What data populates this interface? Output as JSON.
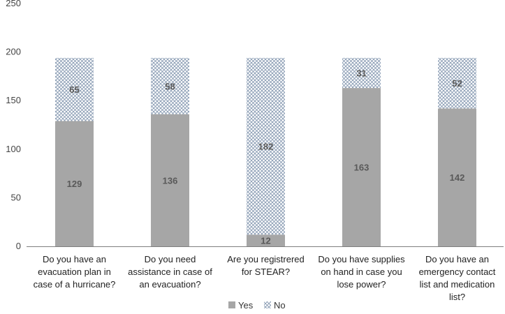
{
  "chart_data": {
    "type": "bar",
    "stacked": true,
    "categories": [
      [
        "Do you have an",
        "evacuation plan in",
        "case of a hurricane?"
      ],
      [
        "Do you need",
        "assistance in case of",
        "an evacuation?"
      ],
      [
        "Are you registrered",
        "for STEAR?"
      ],
      [
        "Do you have supplies",
        "on hand in case you",
        "lose power?"
      ],
      [
        "Do you have an",
        "emergency contact",
        "list and medication",
        "list?"
      ]
    ],
    "series": [
      {
        "name": "Yes",
        "values": [
          129,
          136,
          12,
          163,
          142
        ],
        "color": "#a6a6a6",
        "pattern": "solid"
      },
      {
        "name": "No",
        "values": [
          65,
          58,
          182,
          31,
          52
        ],
        "color": "#8497b0",
        "pattern": "crosshatch"
      }
    ],
    "ylim": [
      0,
      250
    ],
    "yticks": [
      0,
      50,
      100,
      150,
      200,
      250
    ],
    "grid": false,
    "legend": "bottom",
    "title": "",
    "xlabel": "",
    "ylabel": ""
  }
}
